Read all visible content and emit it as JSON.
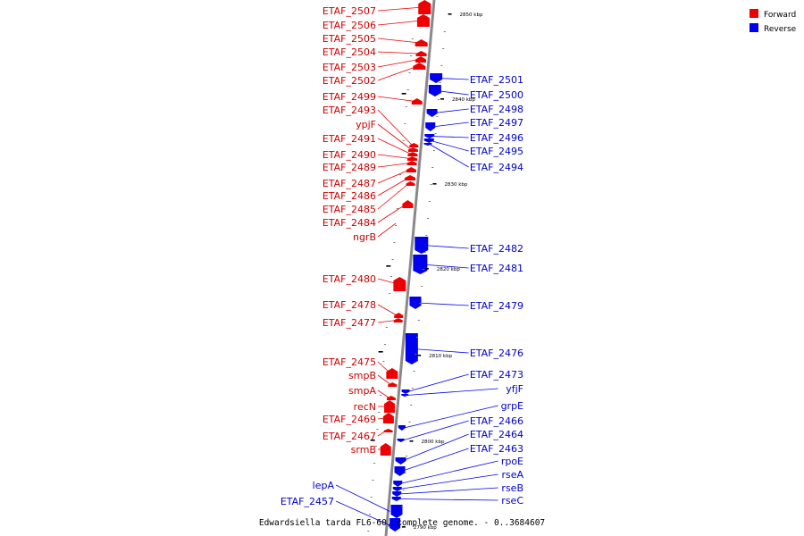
{
  "title": "Edwardsiella tarda FL6-60, complete genome. - 0..3684607",
  "legend": [
    {
      "label": "Forward",
      "color": "#ee0000"
    },
    {
      "label": "Reverse",
      "color": "#0000ee"
    }
  ],
  "colors": {
    "forward": "#ee0000",
    "reverse": "#0000ee",
    "forward_text": "#cc0000",
    "reverse_text": "#0000cc",
    "axis": "#888888"
  },
  "tick_labels": [
    "2850 kbp",
    "2840 kbp",
    "2830 kbp",
    "2820 kbp",
    "2810 kbp",
    "2800 kbp",
    "2790 kbp"
  ],
  "forward_genes": [
    "ETAF_2507",
    "ETAF_2506",
    "ETAF_2505",
    "ETAF_2504",
    "ETAF_2503",
    "ETAF_2502",
    "ETAF_2499",
    "ETAF_2493",
    "ypjF",
    "ETAF_2491",
    "ETAF_2490",
    "ETAF_2489",
    "ETAF_2487",
    "ETAF_2486",
    "ETAF_2485",
    "ETAF_2484",
    "ngrB",
    "ETAF_2480",
    "ETAF_2478",
    "ETAF_2477",
    "ETAF_2475",
    "smpB",
    "smpA",
    "recN",
    "ETAF_2469",
    "ETAF_2467",
    "srmB"
  ],
  "reverse_genes": [
    "ETAF_2501",
    "ETAF_2500",
    "ETAF_2498",
    "ETAF_2497",
    "ETAF_2496",
    "ETAF_2495",
    "ETAF_2494",
    "ETAF_2482",
    "ETAF_2481",
    "ETAF_2479",
    "ETAF_2476",
    "ETAF_2473",
    "yfjF",
    "grpE",
    "ETAF_2466",
    "ETAF_2464",
    "ETAF_2463",
    "rpoE",
    "rseA",
    "rseB",
    "rseC",
    "lepA",
    "ETAF_2457"
  ]
}
